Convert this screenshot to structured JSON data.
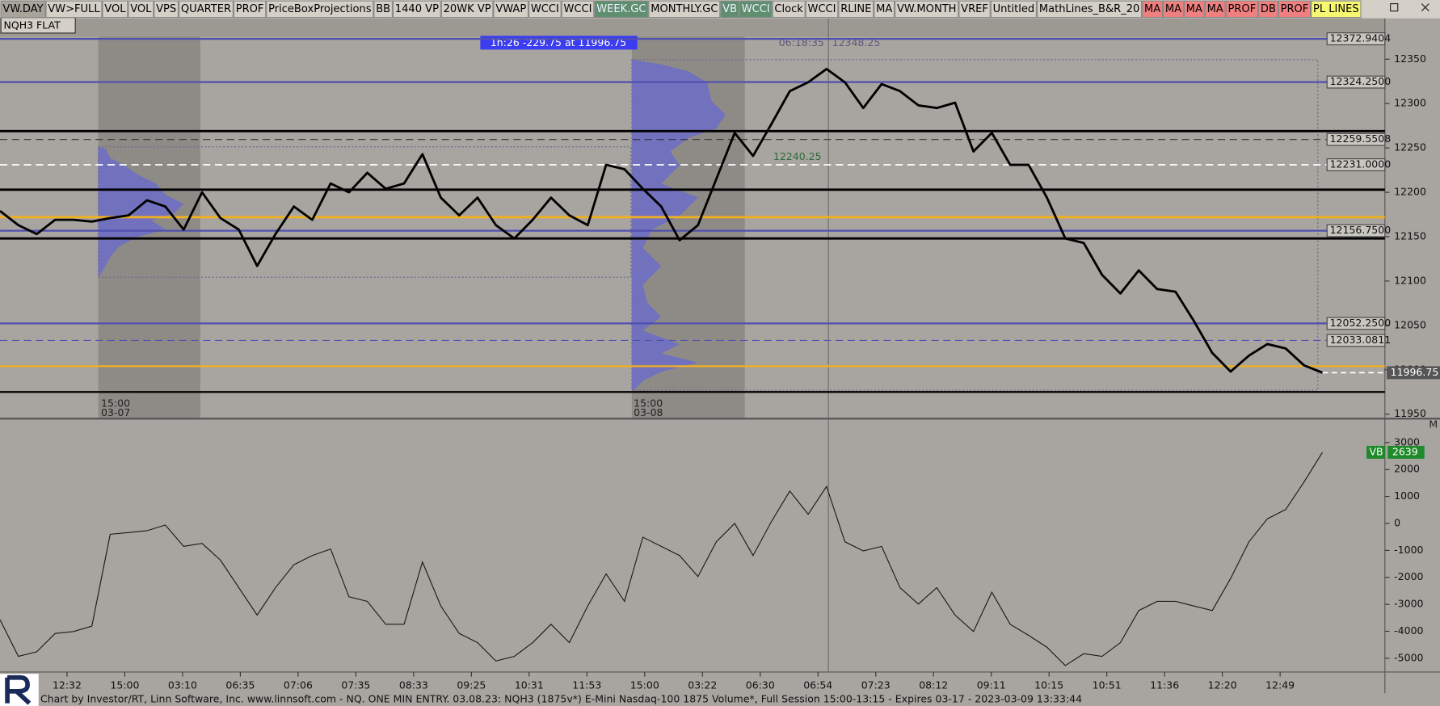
{
  "toolbar": {
    "buttons": [
      {
        "label": "VW.DAY",
        "color": "#a8a49c"
      },
      {
        "label": "VW>FULL",
        "color": "#d4d0c8"
      },
      {
        "label": "VOL",
        "color": "#d4d0c8"
      },
      {
        "label": "VOL",
        "color": "#d4d0c8"
      },
      {
        "label": "VPS",
        "color": "#d4d0c8"
      },
      {
        "label": "QUARTER",
        "color": "#d4d0c8"
      },
      {
        "label": "PROF",
        "color": "#d4d0c8"
      },
      {
        "label": "PriceBoxProjections",
        "color": "#d4d0c8"
      },
      {
        "label": "BB",
        "color": "#d4d0c8"
      },
      {
        "label": "1440 VP",
        "color": "#d4d0c8"
      },
      {
        "label": "20WK VP",
        "color": "#d4d0c8"
      },
      {
        "label": "VWAP",
        "color": "#d4d0c8"
      },
      {
        "label": "WCCI",
        "color": "#d4d0c8"
      },
      {
        "label": "WCCI",
        "color": "#d4d0c8"
      },
      {
        "label": "WEEK.GC",
        "color": "#5f8f6f"
      },
      {
        "label": "MONTHLY.GC",
        "color": "#d4d0c8"
      },
      {
        "label": "VB",
        "color": "#5f8f6f"
      },
      {
        "label": "WCCI",
        "color": "#5f8f6f"
      },
      {
        "label": "Clock",
        "color": "#d4d0c8"
      },
      {
        "label": "WCCI",
        "color": "#d4d0c8"
      },
      {
        "label": "RLINE",
        "color": "#d4d0c8"
      },
      {
        "label": "MA",
        "color": "#d4d0c8"
      },
      {
        "label": "VW.MONTH",
        "color": "#d4d0c8"
      },
      {
        "label": "VREF",
        "color": "#d4d0c8"
      },
      {
        "label": "Untitled",
        "color": "#d4d0c8"
      },
      {
        "label": "MathLines_B&R_20",
        "color": "#d4d0c8"
      },
      {
        "label": "MA",
        "color": "#f08080"
      },
      {
        "label": "MA",
        "color": "#f08080"
      },
      {
        "label": "MA",
        "color": "#f08080"
      },
      {
        "label": "MA",
        "color": "#f08080"
      },
      {
        "label": "PROF",
        "color": "#f08080"
      },
      {
        "label": "DB",
        "color": "#f08080"
      },
      {
        "label": "PROF",
        "color": "#f08080"
      },
      {
        "label": "PL LINES",
        "color": "#f8f870"
      }
    ]
  },
  "symbol": "NQH3 FLAT",
  "info_box": "1h:26 -229.75 at 11996.75",
  "crosshair": {
    "time": "06:18:35",
    "price": 12348.25
  },
  "annotation": 12240.25,
  "sessions": [
    {
      "time": "15:00",
      "date": "03-07"
    },
    {
      "time": "15:00",
      "date": "03-08"
    }
  ],
  "time_axis": {
    "labels": [
      "12:32",
      "15:00",
      "03:10",
      "06:35",
      "07:06",
      "07:35",
      "08:33",
      "09:25",
      "10:31",
      "11:53",
      "15:00",
      "03:22",
      "06:30",
      "06:54",
      "07:23",
      "08:12",
      "09:11",
      "10:15",
      "10:51",
      "11:36",
      "12:20",
      "12:49"
    ]
  },
  "chart_data": [
    {
      "type": "line",
      "color": "#000000",
      "values": [
        12179,
        12163,
        12153,
        12169,
        12169,
        12167,
        12171,
        12174,
        12191,
        12184,
        12158,
        12200,
        12171,
        12158,
        12117,
        12153,
        12184,
        12169,
        12210,
        12200,
        12222,
        12204,
        12210,
        12243,
        12194,
        12174,
        12194,
        12163,
        12148,
        12169,
        12194,
        12174,
        12163,
        12231,
        12226,
        12204,
        12184,
        12146,
        12163,
        12215,
        12267,
        12241,
        12277,
        12314,
        12324,
        12339,
        12324,
        12295,
        12322,
        12314,
        12298,
        12295,
        12301,
        12246,
        12267,
        12231,
        12231,
        12194,
        12148,
        12143,
        12107,
        12086,
        12112,
        12091,
        12088,
        12055,
        12019,
        11998,
        12016,
        12029,
        12024,
        12005,
        11996.75
      ],
      "ylim": [
        11946,
        12396
      ],
      "yticks": [
        11950,
        12000,
        12050,
        12100,
        12150,
        12200,
        12250,
        12300,
        12350
      ],
      "levels": [
        {
          "value": 12372.9404,
          "color": "#5050b0",
          "style": "solid",
          "width": 2,
          "label": "12372.9404"
        },
        {
          "value": 12324.25,
          "color": "#5050b0",
          "style": "solid",
          "width": 2,
          "label": "12324.2500"
        },
        {
          "value": 12269,
          "color": "#000000",
          "style": "solid",
          "width": 2.5
        },
        {
          "value": 12259.5508,
          "color": "#333333",
          "style": "dashed",
          "width": 1,
          "label": "12259.5508"
        },
        {
          "value": 12231,
          "color": "#ffffff",
          "style": "dashed",
          "width": 1.5,
          "label": "12231.0000"
        },
        {
          "value": 12203,
          "color": "#000000",
          "style": "solid",
          "width": 2.5
        },
        {
          "value": 12172,
          "color": "#f0b020",
          "style": "solid",
          "width": 2.5
        },
        {
          "value": 12156.75,
          "color": "#5050b0",
          "style": "solid",
          "width": 2,
          "label": "12156.7500"
        },
        {
          "value": 12148,
          "color": "#000000",
          "style": "solid",
          "width": 2.5
        },
        {
          "value": 12052.25,
          "color": "#5050b0",
          "style": "solid",
          "width": 2,
          "label": "12052.2500"
        },
        {
          "value": 12033.0811,
          "color": "#5050b0",
          "style": "dashed",
          "width": 1,
          "label": "12033.0811"
        },
        {
          "value": 12004,
          "color": "#f0b020",
          "style": "solid",
          "width": 2
        },
        {
          "value": 11975,
          "color": "#000000",
          "style": "solid",
          "width": 2
        }
      ]
    },
    {
      "type": "line",
      "series": [
        {
          "name": "VB",
          "color": "#1a1a1a",
          "values": [
            -3570,
            -4930,
            -4760,
            -4080,
            -4010,
            -3810,
            -400,
            -340,
            -270,
            -60,
            -850,
            -740,
            -1360,
            -2380,
            -3400,
            -2380,
            -1530,
            -1190,
            -950,
            -2720,
            -2890,
            -3740,
            -3740,
            -1430,
            -3060,
            -4080,
            -4420,
            -5100,
            -4930,
            -4420,
            -3740,
            -4420,
            -3060,
            -1870,
            -2890,
            -510,
            -850,
            -1190,
            -1970,
            -680,
            0,
            -1190,
            70,
            1200,
            340,
            1370,
            -680,
            -1020,
            -850,
            -2380,
            -2990,
            -2380,
            -3400,
            -4010,
            -2550,
            -3740,
            -4150,
            -4590,
            -5270,
            -4830,
            -4930,
            -4420,
            -3230,
            -2890,
            -2890,
            -3060,
            -3230,
            -2040,
            -680,
            170,
            520,
            1540,
            2639
          ]
        }
      ],
      "ylim": [
        -5510,
        3750
      ],
      "yticks": [
        3000,
        2000,
        1000,
        0,
        -1000,
        -2000,
        -3000,
        -4000,
        -5000
      ]
    }
  ],
  "footer": "Chart by Investor/RT, Linn Software, Inc. www.linnsoft.com - NQ. ONE MIN ENTRY.   03.08.23: NQH3 (1875v*) E-Mini Nasdaq-100 1875 Volume*, Full Session 15:00-13:15 - Expires 03-17 - 2023-03-09 13:33:44"
}
